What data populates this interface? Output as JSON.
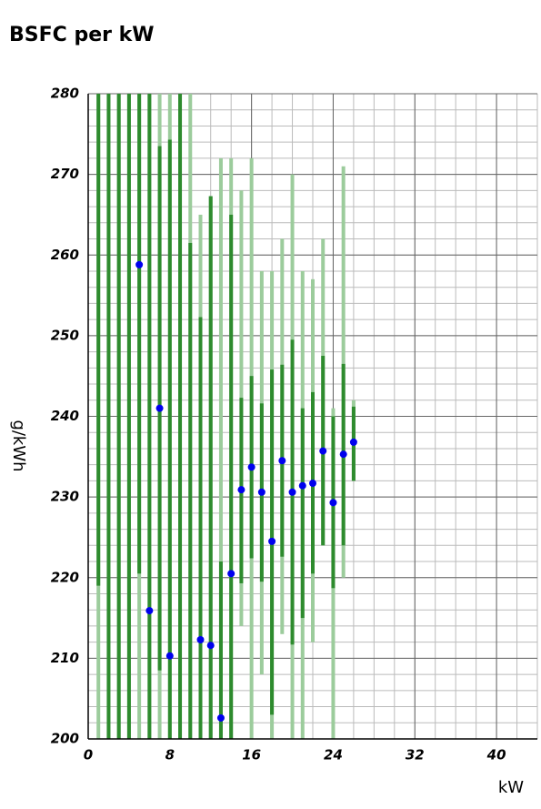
{
  "chart_data": {
    "type": "range-scatter",
    "title": "BSFC per kW",
    "x_label": "kW",
    "y_label": "g/kWh",
    "xlim": [
      0,
      44
    ],
    "ylim": [
      200,
      280
    ],
    "xticks": [
      0,
      8,
      16,
      24,
      32,
      40
    ],
    "yticks": [
      200,
      210,
      220,
      230,
      240,
      250,
      260,
      270,
      280
    ],
    "grid": true,
    "minor_grid_step": 2,
    "x": [
      1,
      2,
      3,
      4,
      5,
      6,
      7,
      8,
      9,
      10,
      11,
      12,
      13,
      14,
      15,
      16,
      17,
      18,
      19,
      20,
      21,
      22,
      23,
      24,
      25,
      26
    ],
    "ranges": [
      {
        "color": "#9ccc9c",
        "low": [
          200,
          200,
          200,
          200,
          200,
          200,
          200,
          200,
          200,
          200,
          200,
          200,
          200,
          200,
          214,
          200,
          208,
          200,
          213,
          200,
          200,
          212,
          224,
          200,
          220,
          232
        ],
        "high": [
          280,
          280,
          280,
          280,
          280,
          280,
          280,
          280,
          280,
          280,
          265,
          267.3,
          272,
          272,
          268,
          272,
          258,
          258,
          262,
          270,
          258,
          257,
          262,
          241,
          271,
          242
        ]
      },
      {
        "color": "#2e8b2e",
        "low": [
          219,
          200,
          200,
          200,
          220.5,
          200,
          208.5,
          200,
          200,
          200,
          200,
          200,
          200,
          200,
          219.3,
          222.4,
          219.5,
          203,
          222.6,
          211.7,
          215,
          220.5,
          224,
          218.7,
          224,
          232
        ],
        "high": [
          280,
          280,
          280,
          280,
          280,
          280,
          273.5,
          274.3,
          280,
          261.5,
          252.3,
          267.3,
          222,
          265,
          242.3,
          245,
          241.6,
          245.8,
          246.4,
          249.5,
          241,
          243,
          247.5,
          240,
          246.5,
          241.2
        ]
      }
    ],
    "series": [
      {
        "color": "#0000ee",
        "values": [
          null,
          null,
          null,
          null,
          258.8,
          215.9,
          241,
          210.3,
          null,
          null,
          212.3,
          211.6,
          202.6,
          220.5,
          230.9,
          233.7,
          230.6,
          224.5,
          234.5,
          230.6,
          231.4,
          231.7,
          235.7,
          229.3,
          235.3,
          236.8
        ]
      }
    ]
  }
}
